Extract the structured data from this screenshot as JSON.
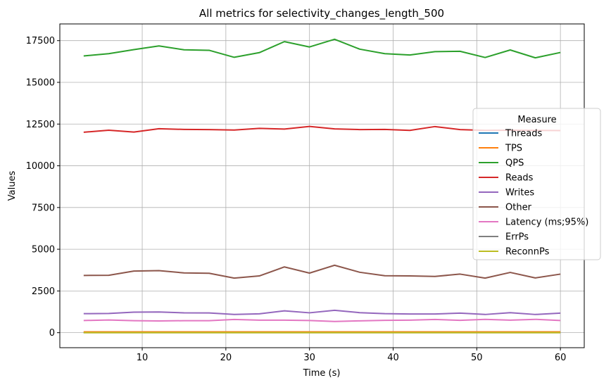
{
  "chart_data": {
    "type": "line",
    "title": "All metrics for selectivity_changes_length_500",
    "xlabel": "Time (s)",
    "ylabel": "Values",
    "xlim": [
      0.15,
      62.85
    ],
    "ylim": [
      -900,
      18500
    ],
    "xticks": [
      10,
      20,
      30,
      40,
      50,
      60
    ],
    "yticks": [
      0,
      2500,
      5000,
      7500,
      10000,
      12500,
      15000,
      17500
    ],
    "grid": true,
    "legend": {
      "title": "Measure",
      "position": "center-right"
    },
    "x": [
      3,
      6,
      9,
      12,
      15,
      18,
      21,
      24,
      27,
      30,
      33,
      36,
      39,
      42,
      45,
      48,
      51,
      54,
      57,
      60
    ],
    "series": [
      {
        "name": "Threads",
        "color": "#1f77b4",
        "values": [
          8,
          8,
          8,
          8,
          8,
          8,
          8,
          8,
          8,
          8,
          8,
          8,
          8,
          8,
          8,
          8,
          8,
          8,
          8,
          8
        ]
      },
      {
        "name": "TPS",
        "color": "#ff7f0e",
        "values": [
          50,
          50,
          50,
          50,
          50,
          50,
          50,
          50,
          50,
          50,
          50,
          50,
          50,
          50,
          50,
          50,
          50,
          50,
          50,
          50
        ]
      },
      {
        "name": "QPS",
        "color": "#2ca02c",
        "values": [
          16580,
          16720,
          16960,
          17180,
          16950,
          16920,
          16500,
          16780,
          17440,
          17120,
          17580,
          16990,
          16720,
          16640,
          16840,
          16860,
          16490,
          16940,
          16470,
          16790
        ]
      },
      {
        "name": "Reads",
        "color": "#d62728",
        "values": [
          12010,
          12130,
          12020,
          12220,
          12180,
          12170,
          12140,
          12240,
          12200,
          12360,
          12210,
          12170,
          12180,
          12120,
          12350,
          12170,
          12120,
          12130,
          12120,
          12110
        ]
      },
      {
        "name": "Writes",
        "color": "#9467bd",
        "values": [
          1140,
          1150,
          1230,
          1240,
          1190,
          1180,
          1090,
          1130,
          1310,
          1190,
          1340,
          1200,
          1140,
          1120,
          1120,
          1170,
          1090,
          1200,
          1090,
          1170
        ]
      },
      {
        "name": "Other",
        "color": "#8c564b",
        "values": [
          3430,
          3440,
          3690,
          3720,
          3580,
          3560,
          3270,
          3400,
          3940,
          3570,
          4040,
          3620,
          3410,
          3400,
          3370,
          3510,
          3270,
          3610,
          3280,
          3510
        ]
      },
      {
        "name": "Latency (ms;95%)",
        "color": "#e377c2",
        "values": [
          730,
          760,
          720,
          700,
          720,
          720,
          790,
          750,
          750,
          730,
          670,
          710,
          740,
          750,
          790,
          740,
          800,
          750,
          800,
          730
        ]
      },
      {
        "name": "ErrPs",
        "color": "#7f7f7f",
        "values": [
          0,
          0,
          0,
          0,
          0,
          0,
          0,
          0,
          0,
          0,
          0,
          0,
          0,
          0,
          0,
          0,
          0,
          0,
          0,
          0
        ]
      },
      {
        "name": "ReconnPs",
        "color": "#bcbd22",
        "values": [
          0,
          0,
          0,
          0,
          0,
          0,
          0,
          0,
          0,
          0,
          0,
          0,
          0,
          0,
          0,
          0,
          0,
          0,
          0,
          0
        ]
      }
    ]
  }
}
